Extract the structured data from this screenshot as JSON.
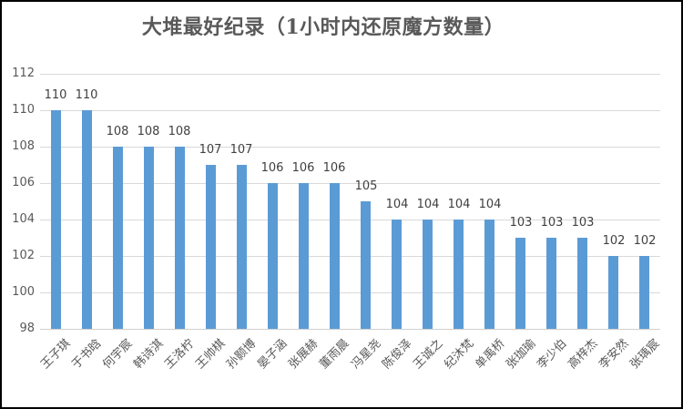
{
  "chart_data": {
    "type": "bar",
    "title": "大堆最好纪录（1小时内还原魔方数量）",
    "xlabel": "",
    "ylabel": "",
    "ylim": [
      98,
      112
    ],
    "yticks": [
      98,
      100,
      102,
      104,
      106,
      108,
      110,
      112
    ],
    "grid": true,
    "legend": null,
    "bar_color": "#5B9BD5",
    "data_labels": true,
    "categories": [
      "王子琪",
      "于书晗",
      "何宇宸",
      "韩诗淇",
      "王洛柠",
      "王帅棋",
      "孙颢博",
      "晏子涵",
      "张展赫",
      "董雨晨",
      "冯星尧",
      "陈俊泽",
      "王诚之",
      "纪沐梵",
      "单禹桥",
      "张珈瑜",
      "李少伯",
      "高梓杰",
      "李安然",
      "张瑀宸"
    ],
    "values": [
      110,
      110,
      108,
      108,
      108,
      107,
      107,
      106,
      106,
      106,
      105,
      104,
      104,
      104,
      104,
      103,
      103,
      103,
      102,
      102
    ]
  }
}
